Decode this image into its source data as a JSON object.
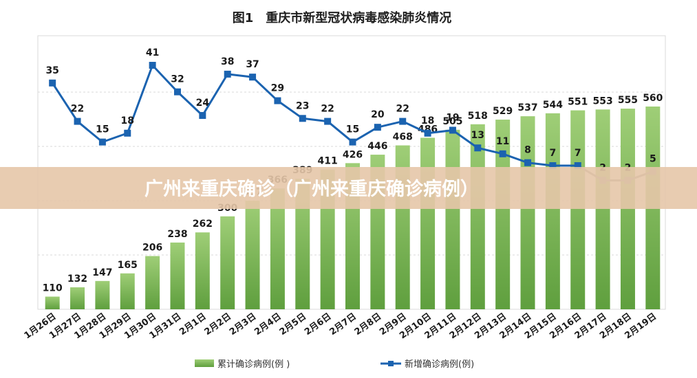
{
  "chart_data": {
    "type": "bar+line",
    "title": "图1　重庆市新型冠状病毒感染肺炎情况",
    "categories": [
      "1月26日",
      "1月27日",
      "1月28日",
      "1月29日",
      "1月30日",
      "1月31日",
      "2月1日",
      "2月2日",
      "2月3日",
      "2月4日",
      "2月5日",
      "2月6日",
      "2月7日",
      "2月8日",
      "2月9日",
      "2月10日",
      "2月11日",
      "2月12日",
      "2月13日",
      "2月14日",
      "2月15日",
      "2月16日",
      "2月17日",
      "2月18日",
      "2月19日"
    ],
    "series": [
      {
        "name": "累计确诊病例(例 )",
        "type": "bar",
        "values": [
          110,
          132,
          147,
          165,
          206,
          238,
          262,
          300,
          337,
          366,
          389,
          411,
          426,
          446,
          468,
          486,
          505,
          518,
          529,
          537,
          544,
          551,
          553,
          555,
          560
        ]
      },
      {
        "name": "新增确诊病例(例)",
        "type": "line",
        "values": [
          35,
          22,
          15,
          18,
          41,
          32,
          24,
          38,
          37,
          29,
          23,
          22,
          15,
          20,
          22,
          18,
          19,
          13,
          11,
          8,
          7,
          7,
          2,
          2,
          5
        ]
      }
    ],
    "grid": true,
    "legend": "bottom",
    "colors": {
      "bar": "#7cb65a",
      "line": "#1b63b0",
      "line_recent": "#8c8c8c",
      "banner": "#e6c6a8"
    }
  },
  "banner": {
    "text": "广州来重庆确诊（广州来重庆确诊病例）"
  }
}
